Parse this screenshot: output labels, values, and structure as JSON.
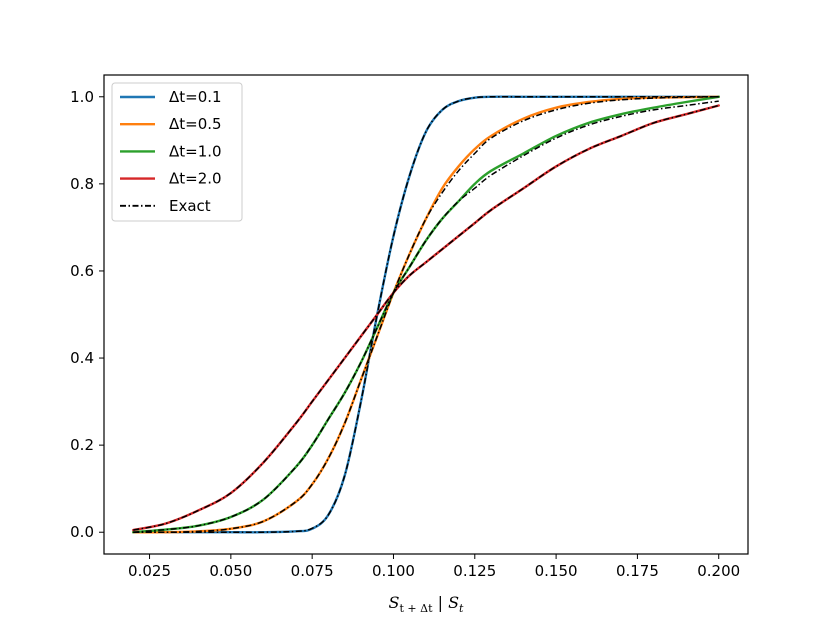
{
  "chart_data": {
    "type": "line",
    "xlabel": "S_{t+Δt} | S_t",
    "xlabel_parts": {
      "main": "S",
      "sub1": "t + Δt",
      "sep": " | ",
      "main2": "S",
      "sub2": "t"
    },
    "ylabel": "",
    "title": "",
    "xlim": [
      0.011,
      0.209
    ],
    "ylim": [
      -0.05,
      1.05
    ],
    "xticks": [
      0.025,
      0.05,
      0.075,
      0.1,
      0.125,
      0.15,
      0.175,
      0.2
    ],
    "xtick_labels": [
      "0.025",
      "0.050",
      "0.075",
      "0.100",
      "0.125",
      "0.150",
      "0.175",
      "0.200"
    ],
    "yticks": [
      0.0,
      0.2,
      0.4,
      0.6,
      0.8,
      1.0
    ],
    "ytick_labels": [
      "0.0",
      "0.2",
      "0.4",
      "0.6",
      "0.8",
      "1.0"
    ],
    "grid": false,
    "legend_position": "top-left",
    "legend": [
      {
        "label": "Δt=0.1",
        "color": "#1f77b4",
        "style": "solid"
      },
      {
        "label": "Δt=0.5",
        "color": "#ff7f0e",
        "style": "solid"
      },
      {
        "label": "Δt=1.0",
        "color": "#2ca02c",
        "style": "solid"
      },
      {
        "label": "Δt=2.0",
        "color": "#d62728",
        "style": "solid"
      },
      {
        "label": "Exact",
        "color": "#000000",
        "style": "dashdot"
      }
    ],
    "x": [
      0.02,
      0.03,
      0.04,
      0.05,
      0.06,
      0.07,
      0.075,
      0.08,
      0.085,
      0.09,
      0.095,
      0.1,
      0.105,
      0.11,
      0.115,
      0.12,
      0.125,
      0.13,
      0.14,
      0.15,
      0.16,
      0.17,
      0.18,
      0.19,
      0.2
    ],
    "series": [
      {
        "name": "Δt=0.1",
        "color": "#1f77b4",
        "style": "solid",
        "values": [
          0.0,
          0.0,
          0.0,
          0.0,
          0.0,
          0.002,
          0.008,
          0.04,
          0.13,
          0.3,
          0.5,
          0.68,
          0.82,
          0.92,
          0.97,
          0.99,
          0.998,
          1.0,
          1.0,
          1.0,
          1.0,
          1.0,
          1.0,
          1.0,
          1.0
        ]
      },
      {
        "name": "Δt=0.5",
        "color": "#ff7f0e",
        "style": "solid",
        "values": [
          0.0,
          0.0,
          0.002,
          0.008,
          0.025,
          0.07,
          0.11,
          0.17,
          0.25,
          0.35,
          0.45,
          0.55,
          0.64,
          0.72,
          0.79,
          0.84,
          0.88,
          0.91,
          0.95,
          0.975,
          0.988,
          0.995,
          0.998,
          0.999,
          1.0
        ]
      },
      {
        "name": "Δt=1.0",
        "color": "#2ca02c",
        "style": "solid",
        "values": [
          0.0,
          0.006,
          0.015,
          0.035,
          0.075,
          0.15,
          0.2,
          0.26,
          0.32,
          0.39,
          0.47,
          0.55,
          0.61,
          0.67,
          0.72,
          0.76,
          0.8,
          0.83,
          0.87,
          0.91,
          0.94,
          0.96,
          0.975,
          0.988,
          1.0
        ]
      },
      {
        "name": "Δt=2.0",
        "color": "#d62728",
        "style": "solid",
        "values": [
          0.005,
          0.02,
          0.05,
          0.09,
          0.16,
          0.25,
          0.3,
          0.35,
          0.4,
          0.45,
          0.5,
          0.55,
          0.59,
          0.62,
          0.65,
          0.68,
          0.71,
          0.74,
          0.79,
          0.84,
          0.88,
          0.91,
          0.94,
          0.96,
          0.98
        ]
      }
    ],
    "exact_series": [
      {
        "name": "Exact (Δt=0.1)",
        "values": [
          0.0,
          0.0,
          0.0,
          0.0,
          0.0,
          0.002,
          0.009,
          0.04,
          0.13,
          0.3,
          0.5,
          0.68,
          0.82,
          0.92,
          0.97,
          0.99,
          0.998,
          1.0,
          1.0,
          1.0,
          1.0,
          1.0,
          1.0,
          1.0,
          1.0
        ]
      },
      {
        "name": "Exact (Δt=0.5)",
        "values": [
          0.0,
          0.0,
          0.002,
          0.008,
          0.025,
          0.07,
          0.11,
          0.17,
          0.25,
          0.35,
          0.45,
          0.55,
          0.64,
          0.72,
          0.78,
          0.83,
          0.87,
          0.905,
          0.945,
          0.97,
          0.985,
          0.993,
          0.997,
          0.999,
          1.0
        ]
      },
      {
        "name": "Exact (Δt=1.0)",
        "values": [
          0.0,
          0.006,
          0.015,
          0.035,
          0.075,
          0.15,
          0.2,
          0.26,
          0.32,
          0.39,
          0.47,
          0.55,
          0.61,
          0.67,
          0.72,
          0.76,
          0.79,
          0.82,
          0.865,
          0.905,
          0.935,
          0.955,
          0.97,
          0.98,
          0.99
        ]
      },
      {
        "name": "Exact (Δt=2.0)",
        "values": [
          0.005,
          0.02,
          0.05,
          0.09,
          0.16,
          0.25,
          0.3,
          0.35,
          0.4,
          0.45,
          0.5,
          0.55,
          0.59,
          0.62,
          0.65,
          0.68,
          0.71,
          0.74,
          0.79,
          0.84,
          0.88,
          0.91,
          0.94,
          0.96,
          0.98
        ]
      }
    ]
  }
}
